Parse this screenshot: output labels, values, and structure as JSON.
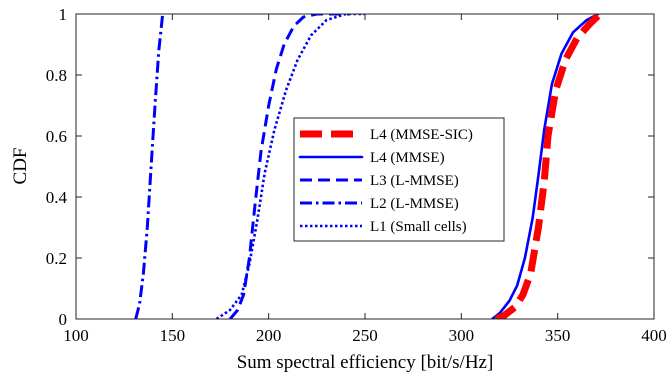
{
  "chart_data": {
    "type": "line",
    "title": "",
    "xlabel": "Sum spectral efficiency [bit/s/Hz]",
    "ylabel": "CDF",
    "xlim": [
      100,
      400
    ],
    "ylim": [
      0,
      1
    ],
    "xticks": [
      "100",
      "150",
      "200",
      "250",
      "300",
      "350",
      "400"
    ],
    "yticks": [
      "0",
      "0.2",
      "0.4",
      "0.6",
      "0.8",
      "1"
    ],
    "grid": false,
    "legend_position": "center",
    "series": [
      {
        "name": "L4 (MMSE-SIC)",
        "color": "#ff0000",
        "style": "dashed-thick",
        "points": [
          [
            318,
            0
          ],
          [
            322,
            0.01
          ],
          [
            328,
            0.04
          ],
          [
            332,
            0.08
          ],
          [
            336,
            0.15
          ],
          [
            340,
            0.3
          ],
          [
            343,
            0.45
          ],
          [
            345,
            0.6
          ],
          [
            349,
            0.75
          ],
          [
            354,
            0.85
          ],
          [
            360,
            0.92
          ],
          [
            367,
            0.97
          ],
          [
            372,
            1
          ]
        ]
      },
      {
        "name": "L4 (MMSE)",
        "color": "#0000ff",
        "style": "solid",
        "points": [
          [
            316,
            0
          ],
          [
            320,
            0.02
          ],
          [
            325,
            0.06
          ],
          [
            329,
            0.11
          ],
          [
            333,
            0.2
          ],
          [
            337,
            0.33
          ],
          [
            340,
            0.47
          ],
          [
            343,
            0.62
          ],
          [
            347,
            0.77
          ],
          [
            352,
            0.87
          ],
          [
            358,
            0.94
          ],
          [
            365,
            0.98
          ],
          [
            371,
            1
          ]
        ]
      },
      {
        "name": "L3 (L-MMSE)",
        "color": "#0000ff",
        "style": "dashed",
        "points": [
          [
            180,
            0
          ],
          [
            184,
            0.03
          ],
          [
            187,
            0.08
          ],
          [
            190,
            0.2
          ],
          [
            193,
            0.38
          ],
          [
            196,
            0.55
          ],
          [
            200,
            0.7
          ],
          [
            204,
            0.82
          ],
          [
            208,
            0.9
          ],
          [
            213,
            0.96
          ],
          [
            218,
            0.99
          ],
          [
            225,
            1
          ],
          [
            242,
            1
          ]
        ]
      },
      {
        "name": "L2 (L-MMSE)",
        "color": "#0000ff",
        "style": "dashdot",
        "points": [
          [
            131,
            0
          ],
          [
            133,
            0.05
          ],
          [
            135,
            0.15
          ],
          [
            137,
            0.3
          ],
          [
            139,
            0.5
          ],
          [
            141,
            0.7
          ],
          [
            143,
            0.88
          ],
          [
            145,
            1
          ]
        ]
      },
      {
        "name": "L1 (Small cells)",
        "color": "#0000ff",
        "style": "dotted",
        "points": [
          [
            173,
            0
          ],
          [
            180,
            0.03
          ],
          [
            186,
            0.08
          ],
          [
            190,
            0.18
          ],
          [
            194,
            0.32
          ],
          [
            198,
            0.48
          ],
          [
            203,
            0.62
          ],
          [
            209,
            0.75
          ],
          [
            215,
            0.85
          ],
          [
            222,
            0.93
          ],
          [
            230,
            0.98
          ],
          [
            240,
            1
          ],
          [
            250,
            1
          ]
        ]
      }
    ]
  }
}
